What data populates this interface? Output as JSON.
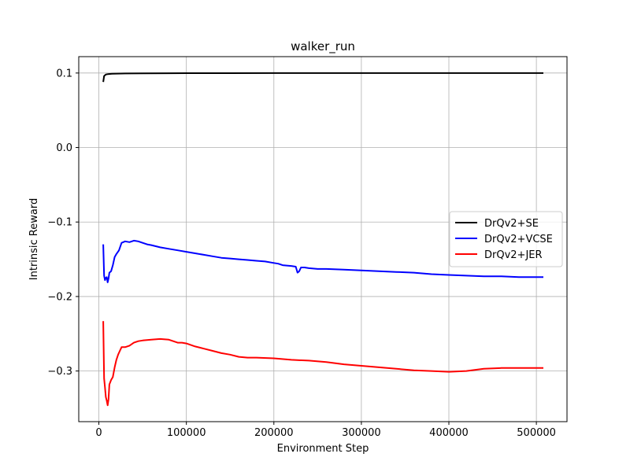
{
  "chart_data": {
    "type": "line",
    "title": "walker_run",
    "xlabel": "Environment Step",
    "ylabel": "Intrinsic  Reward",
    "xlim": [
      -23000,
      535000
    ],
    "ylim": [
      -0.368,
      0.122
    ],
    "xticks": [
      0,
      100000,
      200000,
      300000,
      400000,
      500000
    ],
    "xtick_labels": [
      "0",
      "100000",
      "200000",
      "300000",
      "400000",
      "500000"
    ],
    "yticks": [
      0.1,
      0.0,
      -0.1,
      -0.2,
      -0.3
    ],
    "ytick_labels": [
      "0.1",
      "0.0",
      "−0.1",
      "−0.2",
      "−0.3"
    ],
    "grid": true,
    "legend_position": "center-right",
    "series": [
      {
        "name": "DrQv2+SE",
        "color": "#000000",
        "x": [
          5000,
          6000,
          8000,
          10000,
          15000,
          20000,
          30000,
          50000,
          80000,
          100000,
          150000,
          200000,
          300000,
          400000,
          508000
        ],
        "y": [
          0.088,
          0.096,
          0.098,
          0.0985,
          0.099,
          0.0992,
          0.0994,
          0.0996,
          0.0997,
          0.0998,
          0.0998,
          0.0999,
          0.0999,
          0.0999,
          0.0999
        ]
      },
      {
        "name": "DrQv2+VCSE",
        "color": "#0000ff",
        "x": [
          5000,
          6000,
          7000,
          8000,
          9000,
          10000,
          11000,
          12000,
          14000,
          16000,
          18000,
          20000,
          23000,
          26000,
          30000,
          35000,
          40000,
          45000,
          50000,
          55000,
          60000,
          70000,
          80000,
          90000,
          100000,
          110000,
          120000,
          130000,
          140000,
          150000,
          160000,
          170000,
          180000,
          190000,
          200000,
          205000,
          210000,
          220000,
          225000,
          227000,
          229000,
          231000,
          235000,
          240000,
          250000,
          260000,
          280000,
          300000,
          320000,
          340000,
          360000,
          380000,
          400000,
          420000,
          440000,
          460000,
          480000,
          500000,
          508000
        ],
        "y": [
          -0.13,
          -0.172,
          -0.178,
          -0.175,
          -0.174,
          -0.181,
          -0.176,
          -0.168,
          -0.166,
          -0.158,
          -0.147,
          -0.143,
          -0.138,
          -0.128,
          -0.126,
          -0.127,
          -0.125,
          -0.126,
          -0.128,
          -0.13,
          -0.131,
          -0.134,
          -0.136,
          -0.138,
          -0.14,
          -0.142,
          -0.144,
          -0.146,
          -0.148,
          -0.149,
          -0.15,
          -0.151,
          -0.152,
          -0.153,
          -0.155,
          -0.156,
          -0.158,
          -0.159,
          -0.16,
          -0.168,
          -0.166,
          -0.161,
          -0.161,
          -0.162,
          -0.163,
          -0.163,
          -0.164,
          -0.165,
          -0.166,
          -0.167,
          -0.168,
          -0.17,
          -0.171,
          -0.172,
          -0.173,
          -0.173,
          -0.174,
          -0.174,
          -0.174
        ]
      },
      {
        "name": "DrQv2+JER",
        "color": "#ff0000",
        "x": [
          5000,
          6000,
          7000,
          8000,
          9000,
          10000,
          11000,
          12000,
          14000,
          16000,
          18000,
          20000,
          22000,
          24000,
          26000,
          28000,
          30000,
          35000,
          40000,
          45000,
          50000,
          60000,
          70000,
          80000,
          85000,
          90000,
          95000,
          100000,
          110000,
          120000,
          130000,
          140000,
          150000,
          160000,
          170000,
          180000,
          200000,
          220000,
          240000,
          260000,
          280000,
          300000,
          320000,
          340000,
          360000,
          380000,
          400000,
          420000,
          440000,
          460000,
          480000,
          500000,
          508000
        ],
        "y": [
          -0.233,
          -0.31,
          -0.322,
          -0.335,
          -0.34,
          -0.346,
          -0.338,
          -0.318,
          -0.312,
          -0.308,
          -0.295,
          -0.285,
          -0.278,
          -0.273,
          -0.268,
          -0.268,
          -0.268,
          -0.266,
          -0.262,
          -0.26,
          -0.259,
          -0.258,
          -0.257,
          -0.258,
          -0.26,
          -0.262,
          -0.262,
          -0.263,
          -0.267,
          -0.27,
          -0.273,
          -0.276,
          -0.278,
          -0.281,
          -0.282,
          -0.282,
          -0.283,
          -0.285,
          -0.286,
          -0.288,
          -0.291,
          -0.293,
          -0.295,
          -0.297,
          -0.299,
          -0.3,
          -0.301,
          -0.3,
          -0.297,
          -0.296,
          -0.296,
          -0.296,
          -0.296
        ]
      }
    ]
  }
}
